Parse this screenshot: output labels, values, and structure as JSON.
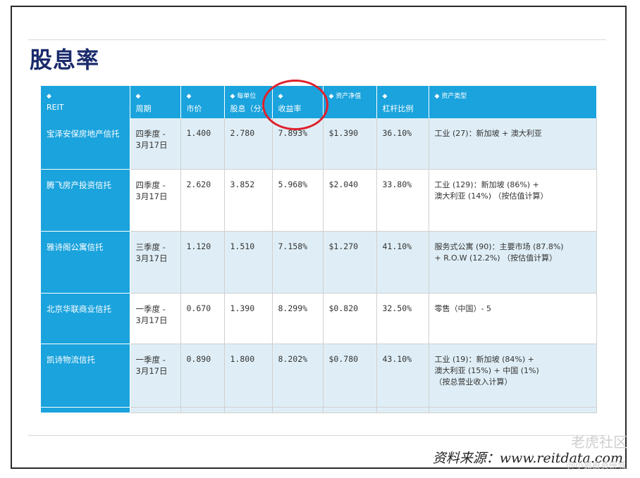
{
  "title": "股息率",
  "table": {
    "headers": [
      {
        "arrow": "◆",
        "label": "REIT"
      },
      {
        "arrow": "◆",
        "label": "周期"
      },
      {
        "arrow": "◆",
        "label": "市价"
      },
      {
        "arrow": "◆ 每单位",
        "label": "股息（分）"
      },
      {
        "arrow": "◆",
        "label": "收益率"
      },
      {
        "arrow": "◆ 资产净值",
        "label": ""
      },
      {
        "arrow": "◆",
        "label": "杠杆比例"
      },
      {
        "arrow": "◆  资产类型",
        "label": ""
      }
    ],
    "rows": [
      {
        "name": "宝泽安保房地产信托",
        "period": "四季度 -\n3月17日",
        "price": "1.400",
        "dpu": "2.780",
        "yield": "7.893%",
        "nav": "$1.390",
        "leverage": "36.10%",
        "asset": "工业 (27)：新加坡 + 澳大利亚"
      },
      {
        "name": "腾飞房产投资信托",
        "period": "四季度 -\n3月17日",
        "price": "2.620",
        "dpu": "3.852",
        "yield": "5.968%",
        "nav": "$2.040",
        "leverage": "33.80%",
        "asset": "工业 (129)：新加坡 (86%) +\n澳大利亚 (14%) （按估值计算）"
      },
      {
        "name": "雅诗阁公寓信托",
        "period": "三季度 -\n3月17日",
        "price": "1.120",
        "dpu": "1.510",
        "yield": "7.158%",
        "nav": "$1.270",
        "leverage": "41.10%",
        "asset": "服务式公寓 (90)：主要市场 (87.8%)\n+ R.O.W (12.2%) （按估值计算）"
      },
      {
        "name": "北京华联商业信托",
        "period": "一季度 -\n3月17日",
        "price": "0.670",
        "dpu": "1.390",
        "yield": "8.299%",
        "nav": "$0.820",
        "leverage": "32.50%",
        "asset": "零售（中国）- 5"
      },
      {
        "name": "凯诗物流信托",
        "period": "一季度 -\n3月17日",
        "price": "0.890",
        "dpu": "1.800",
        "yield": "8.202%",
        "nav": "$0.780",
        "leverage": "43.10%",
        "asset": "工业 (19)：新加坡 (84%) +\n澳大利亚 (15%) + 中国 (1%)\n（按总营业收入计算）"
      }
    ]
  },
  "source": "资料来源：www.reitdata.com",
  "watermark": {
    "main": "老虎社区",
    "sub": "@小狐投资研城"
  },
  "colors": {
    "header_bg": "#1aa3dd",
    "alt_row_bg": "#dfeef6",
    "title": "#1a2a6c",
    "highlight_circle": "#e0202a"
  }
}
